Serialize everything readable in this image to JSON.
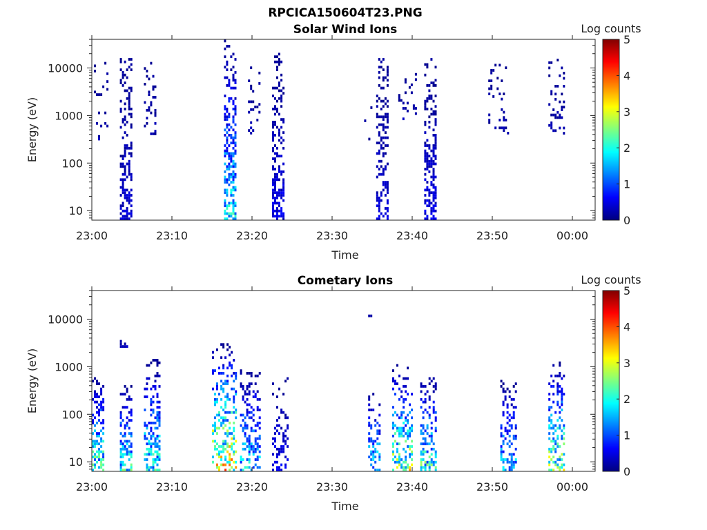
{
  "title": "RPCICA150604T23.PNG",
  "chart_data": [
    {
      "type": "heatmap",
      "title": "Solar Wind Ions",
      "xlabel": "Time",
      "ylabel": "Energy (eV)",
      "xticks": [
        "23:00",
        "23:10",
        "23:20",
        "23:30",
        "23:40",
        "23:50",
        "00:00"
      ],
      "xlim_minutes": [
        0,
        63
      ],
      "ylim": [
        6.3,
        40000
      ],
      "yticks": [
        "10",
        "100",
        "1000",
        "10000"
      ],
      "colorbar": {
        "label": "Log counts",
        "range": [
          0,
          5
        ],
        "ticks": [
          "0",
          "1",
          "2",
          "3",
          "4",
          "5"
        ]
      },
      "clusters": [
        {
          "t0": 0,
          "t1": 2,
          "emin": 300,
          "emax": 15000,
          "peak": 0.3,
          "density": 0.12
        },
        {
          "t0": 3.5,
          "t1": 5,
          "emin": 6.3,
          "emax": 15000,
          "peak": 0.5,
          "density": 0.45
        },
        {
          "t0": 6.5,
          "t1": 8,
          "emin": 300,
          "emax": 15000,
          "peak": 0.3,
          "density": 0.2
        },
        {
          "t0": 14.5,
          "t1": 15,
          "emin": 2000,
          "emax": 4000,
          "peak": 0.2,
          "density": 0.1
        },
        {
          "t0": 16.5,
          "t1": 18,
          "emin": 6.3,
          "emax": 40000,
          "peak": 2,
          "density": 0.45
        },
        {
          "t0": 19.5,
          "t1": 21,
          "emin": 400,
          "emax": 10000,
          "peak": 0.3,
          "density": 0.2
        },
        {
          "t0": 22.5,
          "t1": 24,
          "emin": 6.3,
          "emax": 20000,
          "peak": 0.6,
          "density": 0.45
        },
        {
          "t0": 34,
          "t1": 35,
          "emin": 300,
          "emax": 3000,
          "peak": 0.2,
          "density": 0.06
        },
        {
          "t0": 35.5,
          "t1": 37,
          "emin": 6.3,
          "emax": 15000,
          "peak": 0.5,
          "density": 0.4
        },
        {
          "t0": 38,
          "t1": 40.5,
          "emin": 800,
          "emax": 10000,
          "peak": 0.3,
          "density": 0.15
        },
        {
          "t0": 41.5,
          "t1": 43,
          "emin": 6.3,
          "emax": 15000,
          "peak": 0.6,
          "density": 0.45
        },
        {
          "t0": 49.5,
          "t1": 52,
          "emin": 400,
          "emax": 12000,
          "peak": 0.3,
          "density": 0.12
        },
        {
          "t0": 57,
          "t1": 59,
          "emin": 350,
          "emax": 15000,
          "peak": 0.3,
          "density": 0.15
        }
      ]
    },
    {
      "type": "heatmap",
      "title": "Cometary Ions",
      "xlabel": "Time",
      "ylabel": "Energy (eV)",
      "xticks": [
        "23:00",
        "23:10",
        "23:20",
        "23:30",
        "23:40",
        "23:50",
        "00:00"
      ],
      "xlim_minutes": [
        0,
        63
      ],
      "ylim": [
        6.3,
        40000
      ],
      "yticks": [
        "10",
        "100",
        "1000",
        "10000"
      ],
      "colorbar": {
        "label": "Log counts",
        "range": [
          0,
          5
        ],
        "ticks": [
          "0",
          "1",
          "2",
          "3",
          "4",
          "5"
        ]
      },
      "clusters": [
        {
          "t0": 0,
          "t1": 1.5,
          "emin": 6.3,
          "emax": 600,
          "peak": 2.5,
          "density": 0.5
        },
        {
          "t0": 3.5,
          "t1": 5,
          "emin": 6.3,
          "emax": 400,
          "peak": 2.2,
          "density": 0.5
        },
        {
          "t0": 3.5,
          "t1": 4.5,
          "emin": 2500,
          "emax": 3300,
          "peak": 0.5,
          "density": 0.6
        },
        {
          "t0": 6.5,
          "t1": 8.5,
          "emin": 6.3,
          "emax": 1300,
          "peak": 2.2,
          "density": 0.4
        },
        {
          "t0": 15,
          "t1": 18,
          "emin": 6.3,
          "emax": 3000,
          "peak": 3.6,
          "density": 0.35
        },
        {
          "t0": 18.5,
          "t1": 21,
          "emin": 6.3,
          "emax": 800,
          "peak": 2,
          "density": 0.35
        },
        {
          "t0": 22.5,
          "t1": 24.5,
          "emin": 6.3,
          "emax": 600,
          "peak": 0.7,
          "density": 0.25
        },
        {
          "t0": 34.5,
          "t1": 34.8,
          "emin": 11000,
          "emax": 12000,
          "peak": 0.3,
          "density": 1
        },
        {
          "t0": 34.5,
          "t1": 36,
          "emin": 6.3,
          "emax": 300,
          "peak": 2,
          "density": 0.45
        },
        {
          "t0": 37.5,
          "t1": 40,
          "emin": 6.3,
          "emax": 1000,
          "peak": 3,
          "density": 0.4
        },
        {
          "t0": 41,
          "t1": 43,
          "emin": 6.3,
          "emax": 600,
          "peak": 2.4,
          "density": 0.4
        },
        {
          "t0": 51,
          "t1": 53,
          "emin": 6.3,
          "emax": 500,
          "peak": 1.8,
          "density": 0.35
        },
        {
          "t0": 57,
          "t1": 59,
          "emin": 6.3,
          "emax": 1200,
          "peak": 3,
          "density": 0.4
        }
      ]
    }
  ]
}
